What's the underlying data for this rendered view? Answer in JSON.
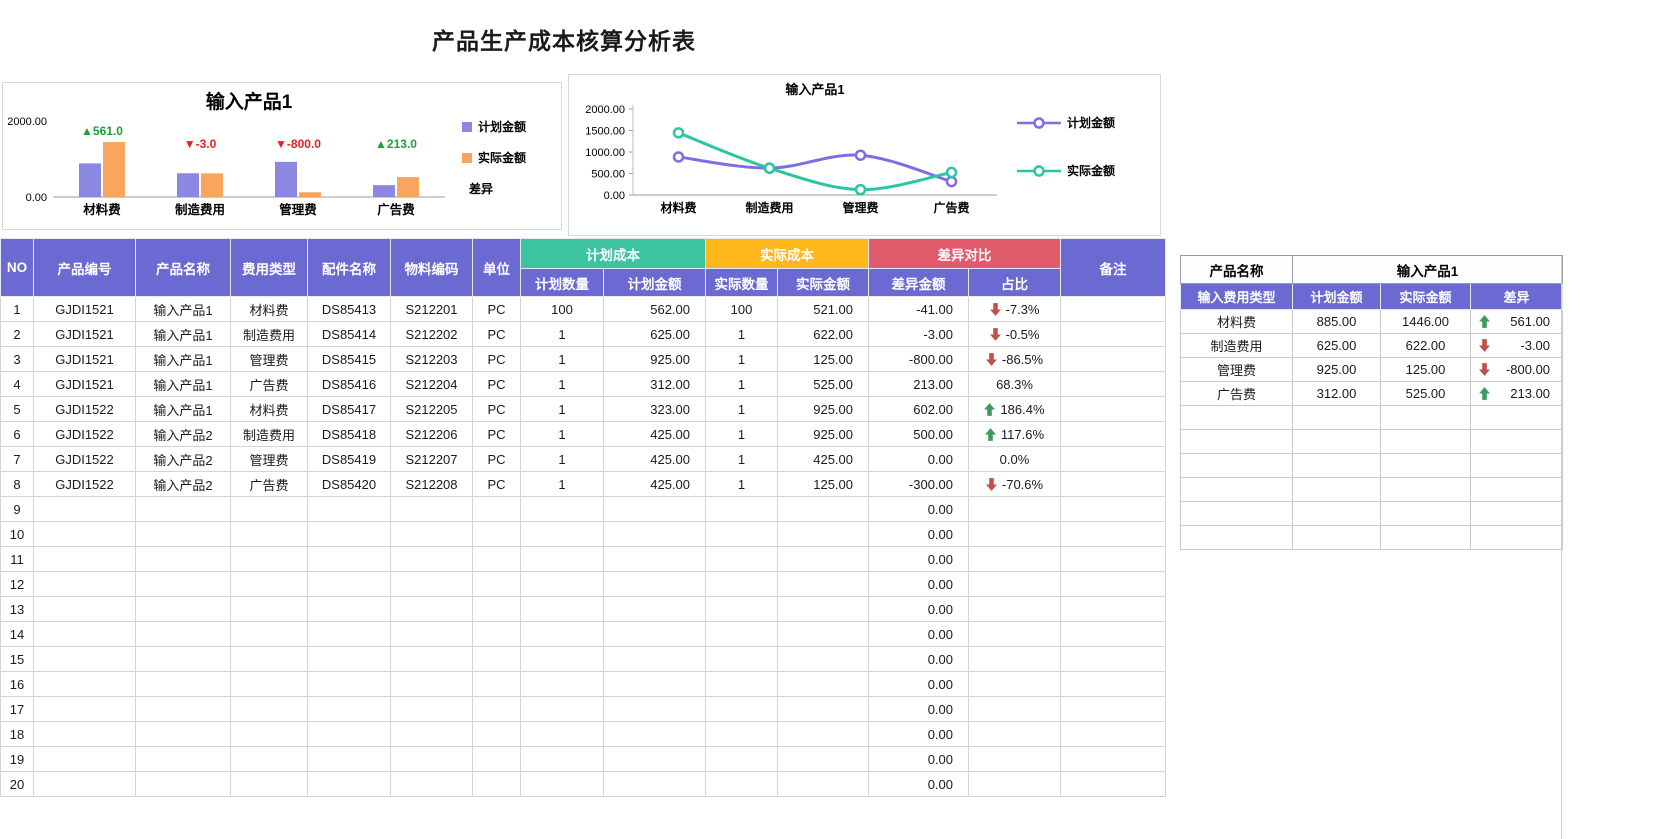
{
  "page": {
    "title": "产品生产成本核算分析表"
  },
  "colors": {
    "header_purple": "#6b6ad3",
    "plan_green": "#3ec3a1",
    "actual_orange": "#ffb81c",
    "diff_red": "#e25b6a",
    "up_arrow": "#3d9a5f",
    "down_arrow": "#c0504d"
  },
  "bar_chart": {
    "type": "bar",
    "title": "输入产品1",
    "categories": [
      "材料费",
      "制造费用",
      "管理费",
      "广告费"
    ],
    "series": [
      {
        "name": "计划金额",
        "color": "#8c87e0",
        "values": [
          885,
          625,
          925,
          312
        ]
      },
      {
        "name": "实际金额",
        "color": "#f8a55f",
        "values": [
          1446,
          622,
          125,
          525
        ]
      }
    ],
    "annotations": [
      {
        "text": "▲561.0",
        "color": "#21a038"
      },
      {
        "text": "▼-3.0",
        "color": "#e02222"
      },
      {
        "text": "▼-800.0",
        "color": "#e02222"
      },
      {
        "text": "▲213.0",
        "color": "#21a038"
      }
    ],
    "legend": [
      {
        "label": "计划金额",
        "color": "#8c87e0"
      },
      {
        "label": "实际金额",
        "color": "#f8a55f"
      },
      {
        "label": "差异",
        "color": null
      }
    ],
    "ylim": [
      0,
      2000
    ],
    "ytick_labels": [
      "2000.00",
      "0.00"
    ]
  },
  "line_chart": {
    "type": "line",
    "title": "输入产品1",
    "categories": [
      "材料费",
      "制造费用",
      "管理费",
      "广告费"
    ],
    "series": [
      {
        "name": "计划金额",
        "color": "#7d6fe3",
        "values": [
          885,
          625,
          925,
          312
        ]
      },
      {
        "name": "实际金额",
        "color": "#2bc6a0",
        "values": [
          1446,
          622,
          125,
          525
        ]
      }
    ],
    "ylim": [
      0,
      2000
    ],
    "yticks": [
      0,
      500,
      1000,
      1500,
      2000
    ]
  },
  "main_table": {
    "headers": {
      "no": "NO",
      "product_code": "产品编号",
      "product_name": "产品名称",
      "fee_type": "费用类型",
      "part_name": "配件名称",
      "material_code": "物料编码",
      "unit": "单位",
      "plan_group": "计划成本",
      "actual_group": "实际成本",
      "diff_group": "差异对比",
      "plan_qty": "计划数量",
      "plan_amount": "计划金额",
      "actual_qty": "实际数量",
      "actual_amount": "实际金额",
      "diff_amount": "差异金额",
      "ratio": "占比",
      "remark": "备注"
    },
    "rows": [
      {
        "no": "1",
        "code": "GJDI1521",
        "name": "输入产品1",
        "fee": "材料费",
        "part": "DS85413",
        "mat": "S212201",
        "unit": "PC",
        "plan_qty": "100",
        "plan_amt": "562.00",
        "act_qty": "100",
        "act_amt": "521.00",
        "diff_amt": "-41.00",
        "ratio": "-7.3%",
        "trend": "down"
      },
      {
        "no": "2",
        "code": "GJDI1521",
        "name": "输入产品1",
        "fee": "制造费用",
        "part": "DS85414",
        "mat": "S212202",
        "unit": "PC",
        "plan_qty": "1",
        "plan_amt": "625.00",
        "act_qty": "1",
        "act_amt": "622.00",
        "diff_amt": "-3.00",
        "ratio": "-0.5%",
        "trend": "down"
      },
      {
        "no": "3",
        "code": "GJDI1521",
        "name": "输入产品1",
        "fee": "管理费",
        "part": "DS85415",
        "mat": "S212203",
        "unit": "PC",
        "plan_qty": "1",
        "plan_amt": "925.00",
        "act_qty": "1",
        "act_amt": "125.00",
        "diff_amt": "-800.00",
        "ratio": "-86.5%",
        "trend": "down"
      },
      {
        "no": "4",
        "code": "GJDI1521",
        "name": "输入产品1",
        "fee": "广告费",
        "part": "DS85416",
        "mat": "S212204",
        "unit": "PC",
        "plan_qty": "1",
        "plan_amt": "312.00",
        "act_qty": "1",
        "act_amt": "525.00",
        "diff_amt": "213.00",
        "ratio": "68.3%",
        "trend": null
      },
      {
        "no": "5",
        "code": "GJDI1522",
        "name": "输入产品1",
        "fee": "材料费",
        "part": "DS85417",
        "mat": "S212205",
        "unit": "PC",
        "plan_qty": "1",
        "plan_amt": "323.00",
        "act_qty": "1",
        "act_amt": "925.00",
        "diff_amt": "602.00",
        "ratio": "186.4%",
        "trend": "up"
      },
      {
        "no": "6",
        "code": "GJDI1522",
        "name": "输入产品2",
        "fee": "制造费用",
        "part": "DS85418",
        "mat": "S212206",
        "unit": "PC",
        "plan_qty": "1",
        "plan_amt": "425.00",
        "act_qty": "1",
        "act_amt": "925.00",
        "diff_amt": "500.00",
        "ratio": "117.6%",
        "trend": "up"
      },
      {
        "no": "7",
        "code": "GJDI1522",
        "name": "输入产品2",
        "fee": "管理费",
        "part": "DS85419",
        "mat": "S212207",
        "unit": "PC",
        "plan_qty": "1",
        "plan_amt": "425.00",
        "act_qty": "1",
        "act_amt": "425.00",
        "diff_amt": "0.00",
        "ratio": "0.0%",
        "trend": null
      },
      {
        "no": "8",
        "code": "GJDI1522",
        "name": "输入产品2",
        "fee": "广告费",
        "part": "DS85420",
        "mat": "S212208",
        "unit": "PC",
        "plan_qty": "1",
        "plan_amt": "425.00",
        "act_qty": "1",
        "act_amt": "125.00",
        "diff_amt": "-300.00",
        "ratio": "-70.6%",
        "trend": "down"
      }
    ],
    "empty_rows": {
      "numbers": [
        "9",
        "10",
        "11",
        "12",
        "13",
        "14",
        "15",
        "16",
        "17",
        "18",
        "19",
        "20"
      ],
      "diff_amt": "0.00"
    }
  },
  "summary_table": {
    "product_label": "产品名称",
    "product_value": "输入产品1",
    "headers": [
      "输入费用类型",
      "计划金额",
      "实际金额",
      "差异"
    ],
    "rows": [
      {
        "fee": "材料费",
        "plan": "885.00",
        "actual": "1446.00",
        "diff": "561.00",
        "trend": "up"
      },
      {
        "fee": "制造费用",
        "plan": "625.00",
        "actual": "622.00",
        "diff": "-3.00",
        "trend": "down"
      },
      {
        "fee": "管理费",
        "plan": "925.00",
        "actual": "125.00",
        "diff": "-800.00",
        "trend": "down"
      },
      {
        "fee": "广告费",
        "plan": "312.00",
        "actual": "525.00",
        "diff": "213.00",
        "trend": "up"
      }
    ],
    "empty_row_count": 6
  }
}
